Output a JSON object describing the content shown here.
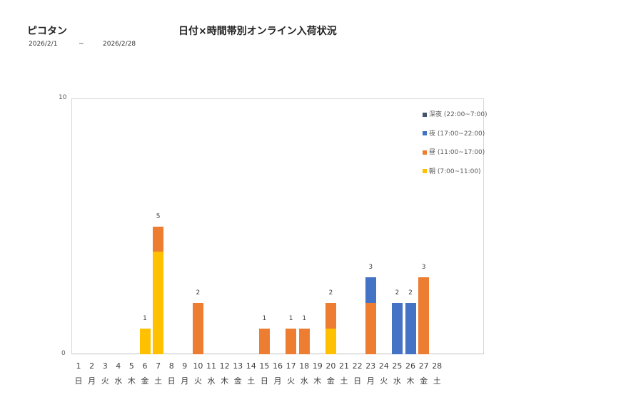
{
  "header": {
    "store": "ピコタン",
    "title": "日付×時間帯別オンライン入荷状況",
    "date_from": "2026/2/1",
    "date_sep": "~",
    "date_to": "2026/2/28"
  },
  "chart_data": {
    "type": "bar",
    "stacked": true,
    "title": "日付×時間帯別オンライン入荷状況",
    "ylim": [
      0,
      10
    ],
    "yticks": [
      "0",
      "10"
    ],
    "categories": [
      "1",
      "2",
      "3",
      "4",
      "5",
      "6",
      "7",
      "8",
      "9",
      "10",
      "11",
      "12",
      "13",
      "14",
      "15",
      "16",
      "17",
      "18",
      "19",
      "20",
      "21",
      "22",
      "23",
      "24",
      "25",
      "26",
      "27",
      "28"
    ],
    "weekdays": [
      "日",
      "月",
      "火",
      "水",
      "木",
      "金",
      "土",
      "日",
      "月",
      "火",
      "水",
      "木",
      "金",
      "土",
      "日",
      "月",
      "火",
      "水",
      "木",
      "金",
      "土",
      "日",
      "月",
      "火",
      "水",
      "木",
      "金",
      "土"
    ],
    "series": [
      {
        "name": "朝 (7:00~11:00)",
        "color": "#FFC000",
        "values": [
          0,
          0,
          0,
          0,
          0,
          1,
          4,
          0,
          0,
          0,
          0,
          0,
          0,
          0,
          0,
          0,
          0,
          0,
          0,
          1,
          0,
          0,
          0,
          0,
          0,
          0,
          0,
          0
        ]
      },
      {
        "name": "昼 (11:00~17:00)",
        "color": "#ED7D31",
        "values": [
          0,
          0,
          0,
          0,
          0,
          0,
          1,
          0,
          0,
          2,
          0,
          0,
          0,
          0,
          1,
          0,
          1,
          1,
          0,
          1,
          0,
          0,
          2,
          0,
          0,
          0,
          3,
          0
        ]
      },
      {
        "name": "夜 (17:00~22:00)",
        "color": "#4472C4",
        "values": [
          0,
          0,
          0,
          0,
          0,
          0,
          0,
          0,
          0,
          0,
          0,
          0,
          0,
          0,
          0,
          0,
          0,
          0,
          0,
          0,
          0,
          0,
          1,
          0,
          2,
          2,
          0,
          0
        ]
      },
      {
        "name": "深夜 (22:00~7:00)",
        "color": "#44546A",
        "values": [
          0,
          0,
          0,
          0,
          0,
          0,
          0,
          0,
          0,
          0,
          0,
          0,
          0,
          0,
          0,
          0,
          0,
          0,
          0,
          0,
          0,
          0,
          0,
          0,
          0,
          0,
          0,
          0
        ]
      }
    ],
    "totals": [
      0,
      0,
      0,
      0,
      0,
      1,
      5,
      0,
      0,
      2,
      0,
      0,
      0,
      0,
      1,
      0,
      1,
      1,
      0,
      2,
      0,
      0,
      3,
      0,
      2,
      2,
      3,
      0
    ],
    "legend_order": [
      "深夜 (22:00~7:00)",
      "夜 (17:00~22:00)",
      "昼 (11:00~17:00)",
      "朝 (7:00~11:00)"
    ],
    "legend_position": "right-top"
  }
}
